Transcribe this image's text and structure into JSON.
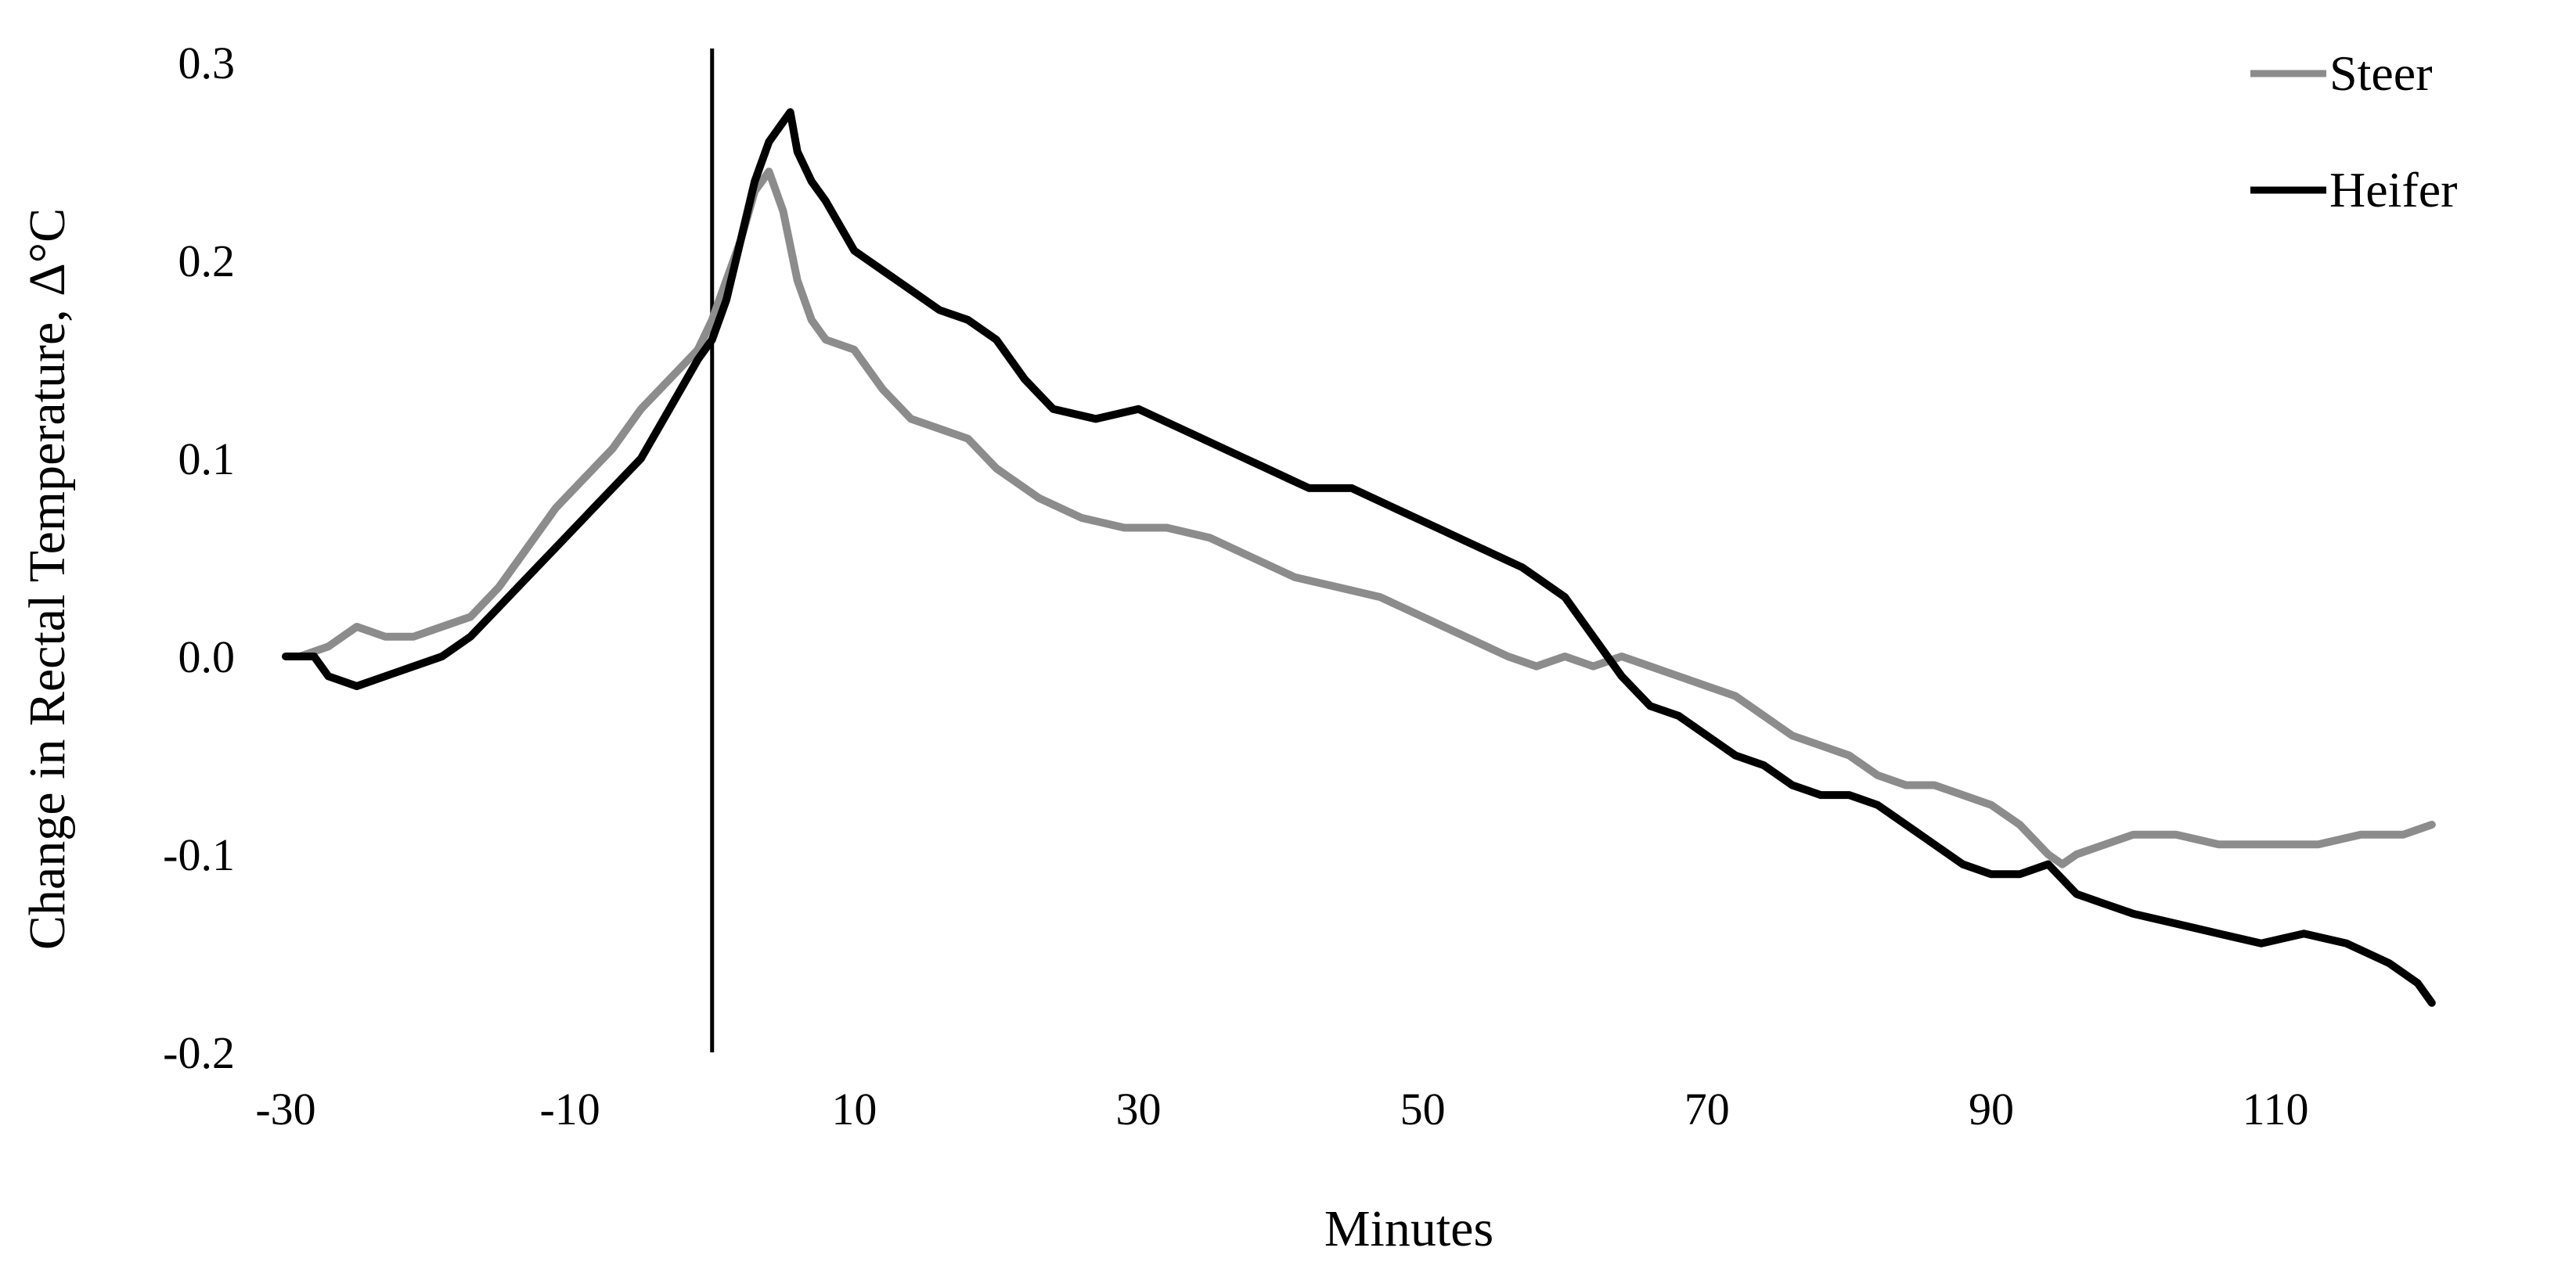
{
  "chart_data": {
    "type": "line",
    "title": "",
    "xlabel": "Minutes",
    "ylabel": "Change in Rectal Temperature, Δ°C",
    "xlim": [
      -30,
      122
    ],
    "ylim": [
      -0.2,
      0.3
    ],
    "x_ticks": [
      -30,
      -10,
      10,
      30,
      50,
      70,
      90,
      110
    ],
    "x_tick_labels": [
      "-30",
      "-10",
      "10",
      "30",
      "50",
      "70",
      "90",
      "110"
    ],
    "y_ticks": [
      0.3,
      0.2,
      0.1,
      0.0,
      -0.1,
      -0.2
    ],
    "y_tick_labels": [
      "0.3",
      "0.2",
      "0.1",
      "0.0",
      "-0.1",
      "-0.2"
    ],
    "grid": false,
    "legend_position": "top-right",
    "reference_line": {
      "x": 0
    },
    "series": [
      {
        "name": "Steer",
        "color": "#8c8c8c",
        "x": [
          -29,
          -27,
          -25,
          -23,
          -21,
          -19,
          -17,
          -15,
          -13,
          -11,
          -9,
          -7,
          -5,
          -3,
          -1,
          0,
          1,
          2,
          3,
          4,
          5,
          6,
          7,
          8,
          10,
          12,
          14,
          16,
          18,
          20,
          23,
          26,
          29,
          32,
          35,
          38,
          41,
          44,
          47,
          50,
          53,
          56,
          58,
          60,
          62,
          64,
          66,
          68,
          70,
          72,
          74,
          76,
          78,
          80,
          82,
          84,
          86,
          88,
          90,
          92,
          94,
          95,
          96,
          98,
          100,
          103,
          106,
          110,
          113,
          116,
          119,
          121
        ],
        "y": [
          0.0,
          0.005,
          0.015,
          0.01,
          0.01,
          0.015,
          0.02,
          0.035,
          0.055,
          0.075,
          0.09,
          0.105,
          0.125,
          0.14,
          0.155,
          0.17,
          0.19,
          0.21,
          0.235,
          0.245,
          0.225,
          0.19,
          0.17,
          0.16,
          0.155,
          0.135,
          0.12,
          0.115,
          0.11,
          0.095,
          0.08,
          0.07,
          0.065,
          0.065,
          0.06,
          0.05,
          0.04,
          0.035,
          0.03,
          0.02,
          0.01,
          0.0,
          -0.005,
          0.0,
          -0.005,
          0.0,
          -0.005,
          -0.01,
          -0.015,
          -0.02,
          -0.03,
          -0.04,
          -0.045,
          -0.05,
          -0.06,
          -0.065,
          -0.065,
          -0.07,
          -0.075,
          -0.085,
          -0.1,
          -0.105,
          -0.1,
          -0.095,
          -0.09,
          -0.09,
          -0.095,
          -0.095,
          -0.095,
          -0.09,
          -0.09,
          -0.085
        ]
      },
      {
        "name": "Heifer",
        "color": "#000000",
        "x": [
          -30,
          -28,
          -27,
          -25,
          -23,
          -21,
          -19,
          -17,
          -15,
          -13,
          -11,
          -9,
          -7,
          -5,
          -3,
          -1,
          0,
          1,
          2,
          3,
          4,
          5,
          5.5,
          6,
          7,
          8,
          10,
          12,
          14,
          16,
          18,
          20,
          22,
          24,
          27,
          30,
          33,
          36,
          39,
          42,
          45,
          48,
          51,
          54,
          57,
          60,
          62,
          64,
          66,
          68,
          70,
          72,
          74,
          76,
          78,
          80,
          82,
          84,
          86,
          88,
          90,
          92,
          94,
          96,
          98,
          100,
          103,
          106,
          109,
          112,
          115,
          118,
          120,
          121
        ],
        "y": [
          0.0,
          0.0,
          -0.01,
          -0.015,
          -0.01,
          -0.005,
          0.0,
          0.01,
          0.025,
          0.04,
          0.055,
          0.07,
          0.085,
          0.1,
          0.125,
          0.15,
          0.16,
          0.18,
          0.21,
          0.24,
          0.26,
          0.27,
          0.275,
          0.255,
          0.24,
          0.23,
          0.205,
          0.195,
          0.185,
          0.175,
          0.17,
          0.16,
          0.14,
          0.125,
          0.12,
          0.125,
          0.115,
          0.105,
          0.095,
          0.085,
          0.085,
          0.075,
          0.065,
          0.055,
          0.045,
          0.03,
          0.01,
          -0.01,
          -0.025,
          -0.03,
          -0.04,
          -0.05,
          -0.055,
          -0.065,
          -0.07,
          -0.07,
          -0.075,
          -0.085,
          -0.095,
          -0.105,
          -0.11,
          -0.11,
          -0.105,
          -0.12,
          -0.125,
          -0.13,
          -0.135,
          -0.14,
          -0.145,
          -0.14,
          -0.145,
          -0.155,
          -0.165,
          -0.175
        ]
      }
    ]
  }
}
